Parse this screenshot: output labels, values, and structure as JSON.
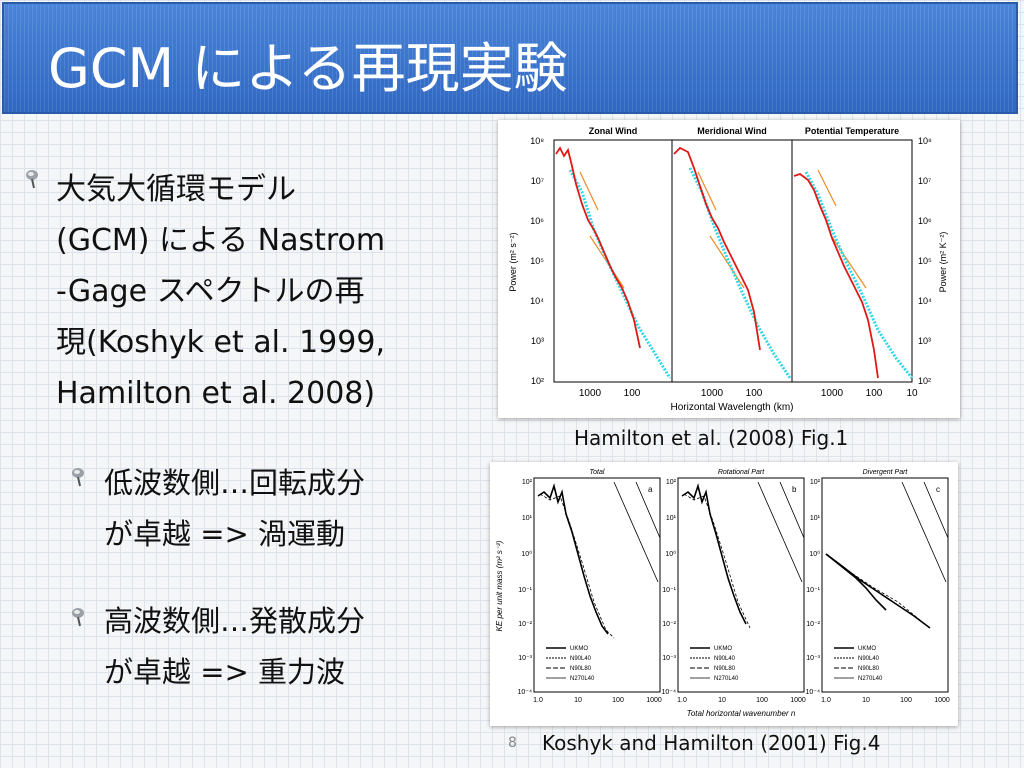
{
  "slide": {
    "title": "GCM による再現実験",
    "page_number": "8"
  },
  "bullets": {
    "main": "大気大循環モデル\n(GCM) による Nastrom\n-Gage スペクトルの再\n現(Koshyk et al. 1999,\nHamilton et al. 2008)",
    "sub1": "低波数側…回転成分\nが卓越 => 渦運動",
    "sub2": "高波数側…発散成分\nが卓越 => 重力波"
  },
  "figure1": {
    "caption": "Hamilton et al. (2008) Fig.1",
    "panel_titles": [
      "Zonal Wind",
      "Meridional Wind",
      "Potential Temperature"
    ],
    "ylabel_left": "Power (m² s⁻²)",
    "ylabel_right": "Power (m² K⁻²)",
    "xlabel": "Horizontal Wavelength (km)",
    "yticks": [
      "10⁸",
      "10⁷",
      "10⁶",
      "10⁵",
      "10⁴",
      "10³",
      "10²"
    ],
    "xticks": [
      "1000",
      "100",
      "1000",
      "100",
      "1000",
      "100",
      "10"
    ]
  },
  "figure2": {
    "caption": "Koshyk and Hamilton  (2001) Fig.4",
    "panel_titles": [
      "Total",
      "Rotational Part",
      "Divergent Part"
    ],
    "panel_letters": [
      "a",
      "b",
      "c"
    ],
    "ylabel": "KE per unit mass (m² s⁻²)",
    "xlabel": "Total horizontal wavenumber n",
    "yticks": [
      "10²",
      "10¹",
      "10⁰",
      "10⁻¹",
      "10⁻²",
      "10⁻³",
      "10⁻⁴"
    ],
    "xticks": [
      "1.0",
      "10",
      "100",
      "1000"
    ],
    "legend": [
      "UKMO",
      "N90L40",
      "N90L80",
      "N270L40"
    ]
  },
  "colors": {
    "title_bar": "#3f79d0",
    "model_line": "#e01818",
    "obs_marks": "#30d8e8",
    "ref_line": "#f08a24"
  }
}
